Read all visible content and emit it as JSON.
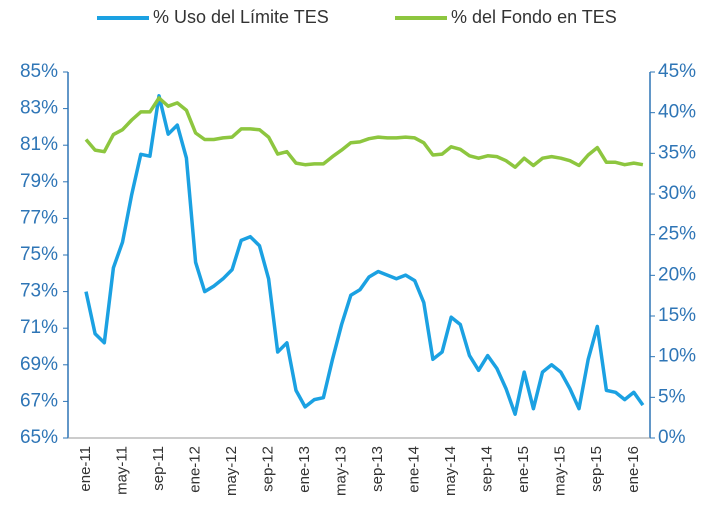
{
  "chart_data": {
    "type": "line",
    "categories": [
      "ene-11",
      null,
      null,
      null,
      "may-11",
      null,
      null,
      null,
      "sep-11",
      null,
      null,
      null,
      "ene-12",
      null,
      null,
      null,
      "may-12",
      null,
      null,
      null,
      "sep-12",
      null,
      null,
      null,
      "ene-13",
      null,
      null,
      null,
      "may-13",
      null,
      null,
      null,
      "sep-13",
      null,
      null,
      null,
      "ene-14",
      null,
      null,
      null,
      "may-14",
      null,
      null,
      null,
      "sep-14",
      null,
      null,
      null,
      "ene-15",
      null,
      null,
      null,
      "may-15",
      null,
      null,
      null,
      "sep-15",
      null,
      null,
      null,
      "ene-16",
      null
    ],
    "series": [
      {
        "name": "% Uso del Límite TES",
        "color": "#1ba1e2",
        "axis": "y",
        "values": [
          73.0,
          70.7,
          70.2,
          74.3,
          75.7,
          78.3,
          80.5,
          80.4,
          83.7,
          81.6,
          82.1,
          80.3,
          74.6,
          73.0,
          73.3,
          73.7,
          74.2,
          75.8,
          76.0,
          75.5,
          73.7,
          69.7,
          70.2,
          67.6,
          66.7,
          67.1,
          67.2,
          69.3,
          71.2,
          72.8,
          73.1,
          73.8,
          74.1,
          73.9,
          73.7,
          73.9,
          73.6,
          72.4,
          69.3,
          69.7,
          71.6,
          71.2,
          69.5,
          68.7,
          69.5,
          68.8,
          67.7,
          66.3,
          68.6,
          66.6,
          68.6,
          69.0,
          68.6,
          67.7,
          66.6,
          69.3,
          71.1,
          67.6,
          67.5,
          67.1,
          67.5,
          66.8
        ]
      },
      {
        "name": "% del Fondo en TES",
        "color": "#8dc63f",
        "axis": "y2",
        "values": [
          36.7,
          35.4,
          35.2,
          37.3,
          37.9,
          39.1,
          40.1,
          40.1,
          41.8,
          40.8,
          41.2,
          40.3,
          37.5,
          36.7,
          36.7,
          36.9,
          37.0,
          38.0,
          38.0,
          37.9,
          37.0,
          34.9,
          35.2,
          33.8,
          33.6,
          33.7,
          33.7,
          34.6,
          35.4,
          36.3,
          36.4,
          36.8,
          37.0,
          36.9,
          36.9,
          37.0,
          36.9,
          36.3,
          34.8,
          34.9,
          35.8,
          35.5,
          34.7,
          34.4,
          34.7,
          34.6,
          34.1,
          33.3,
          34.4,
          33.5,
          34.4,
          34.6,
          34.4,
          34.1,
          33.5,
          34.8,
          35.7,
          33.9,
          33.9,
          33.6,
          33.8,
          33.6
        ]
      }
    ],
    "ylim": [
      65,
      85
    ],
    "yticks": [
      {
        "value": 65,
        "label": "65%"
      },
      {
        "value": 67,
        "label": "67%"
      },
      {
        "value": 69,
        "label": "69%"
      },
      {
        "value": 71,
        "label": "71%"
      },
      {
        "value": 73,
        "label": "73%"
      },
      {
        "value": 75,
        "label": "75%"
      },
      {
        "value": 77,
        "label": "77%"
      },
      {
        "value": 79,
        "label": "79%"
      },
      {
        "value": 81,
        "label": "81%"
      },
      {
        "value": 83,
        "label": "83%"
      },
      {
        "value": 85,
        "label": "85%"
      }
    ],
    "y2lim": [
      0,
      45
    ],
    "y2ticks": [
      {
        "value": 0,
        "label": "0%"
      },
      {
        "value": 5,
        "label": "5%"
      },
      {
        "value": 10,
        "label": "10%"
      },
      {
        "value": 15,
        "label": "15%"
      },
      {
        "value": 20,
        "label": "20%"
      },
      {
        "value": 25,
        "label": "25%"
      },
      {
        "value": 30,
        "label": "30%"
      },
      {
        "value": 35,
        "label": "35%"
      },
      {
        "value": 40,
        "label": "40%"
      },
      {
        "value": 45,
        "label": "45%"
      }
    ],
    "legend": "top",
    "grid": false
  }
}
